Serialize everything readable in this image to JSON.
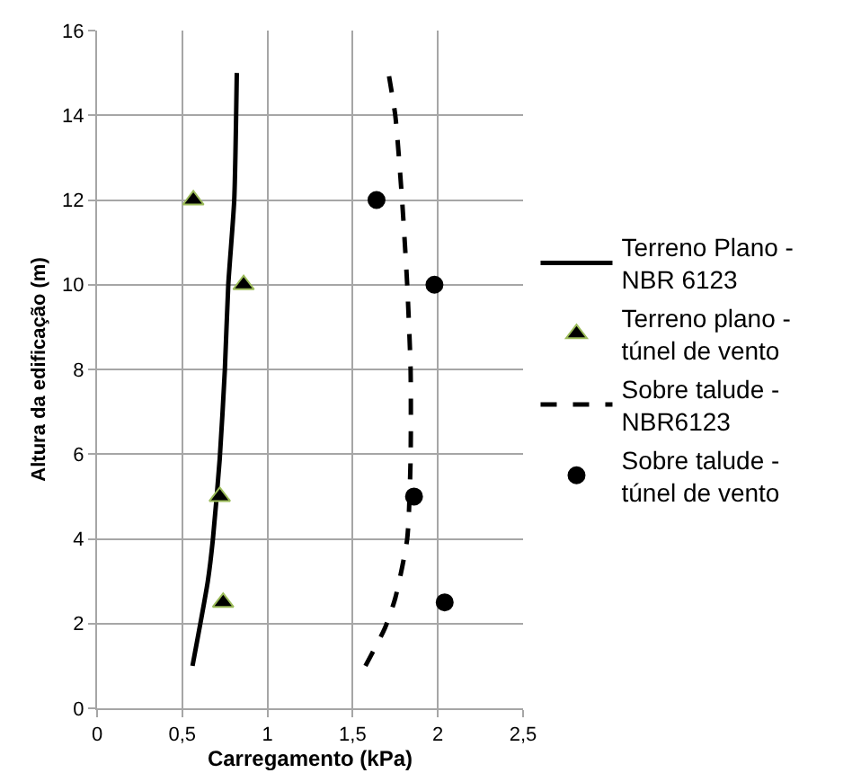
{
  "chart_data": {
    "type": "line",
    "xlabel": "Carregamento (kPa)",
    "ylabel": "Altura da edificação (m)",
    "xlim": [
      0,
      2.5
    ],
    "xticks": [
      0,
      {
        "value": 0.5,
        "label": "0,5"
      },
      1,
      {
        "value": 1.5,
        "label": "1,5"
      },
      2,
      {
        "value": 2.5,
        "label": "2,5"
      }
    ],
    "ylim": [
      0,
      16
    ],
    "yticks": [
      0,
      2,
      4,
      6,
      8,
      10,
      12,
      14,
      16
    ],
    "grid": true,
    "legend": "right",
    "series": [
      {
        "name": "Terreno Plano - NBR 6123",
        "line_style": "solid",
        "marker": "none",
        "color": "#000000",
        "x": [
          0.56,
          0.65,
          0.68,
          0.72,
          0.75,
          0.77,
          0.805,
          0.82
        ],
        "values": [
          1,
          3,
          4,
          5.9,
          8,
          10,
          12,
          15
        ]
      },
      {
        "name": "Terreno plano - túnel de vento",
        "type": "scatter",
        "marker": "triangle",
        "color": "#000000",
        "x": [
          0.565,
          0.86,
          0.72,
          0.74
        ],
        "values": [
          12,
          10,
          5,
          2.5
        ]
      },
      {
        "name": "Sobre talude - NBR6123",
        "line_style": "dashed",
        "marker": "none",
        "color": "#000000",
        "x": [
          1.575,
          1.69,
          1.75,
          1.82,
          1.84,
          1.84,
          1.82,
          1.79,
          1.75,
          1.71
        ],
        "values": [
          1,
          1.9,
          2.6,
          4,
          5.9,
          8,
          10,
          12,
          14,
          15
        ]
      },
      {
        "name": "Sobre talude - túnel de vento",
        "type": "scatter",
        "marker": "circle",
        "color": "#000000",
        "x": [
          1.64,
          1.98,
          1.86,
          2.04
        ],
        "values": [
          12,
          10,
          5,
          2.5
        ]
      }
    ]
  }
}
